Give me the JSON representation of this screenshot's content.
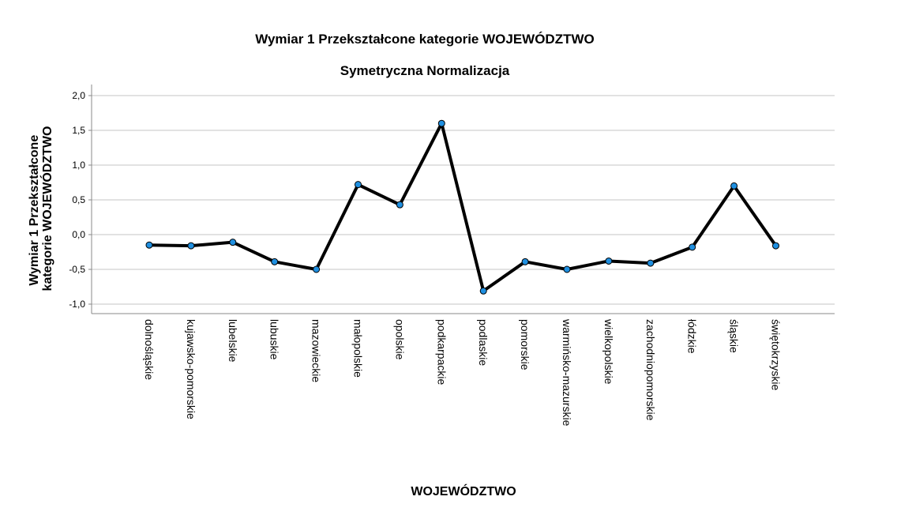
{
  "chart_data": {
    "type": "line",
    "title": "Wymiar 1 Przekształcone kategorie WOJEWÓDZTWO",
    "subtitle": "Symetryczna Normalizacja",
    "xlabel": "WOJEWÓDZTWO",
    "ylabel_lines": [
      "Wymiar 1 Przekształcone",
      "kategorie WOJEWÓDZTWO"
    ],
    "categories": [
      "dolnośląskie",
      "kujawsko-pomorskie",
      "lubelskie",
      "lubuskie",
      "mazowieckie",
      "małopolskie",
      "opolskie",
      "podkarpackie",
      "podlaskie",
      "pomorskie",
      "warmińsko-mazurskie",
      "wielkopolskie",
      "zachodniopomorskie",
      "łódzkie",
      "śląskie",
      "świętokrzyskie"
    ],
    "values": [
      -0.15,
      -0.16,
      -0.11,
      -0.39,
      -0.5,
      0.72,
      0.43,
      1.6,
      -0.81,
      -0.39,
      -0.5,
      -0.38,
      -0.41,
      -0.18,
      0.7,
      -0.16
    ],
    "ylim": [
      -1.15,
      2.15
    ],
    "yticks": [
      2.0,
      1.5,
      1.0,
      0.5,
      0.0,
      -0.5,
      -1.0
    ],
    "ytick_labels": [
      "2,0",
      "1,5",
      "1,0",
      "0,5",
      "0,0",
      "-0,5",
      "-1,0"
    ],
    "grid": true,
    "colors": {
      "line": "#000000",
      "marker": "#1f8fe0",
      "grid": "#d9d9d9",
      "axis": "#888888"
    }
  }
}
